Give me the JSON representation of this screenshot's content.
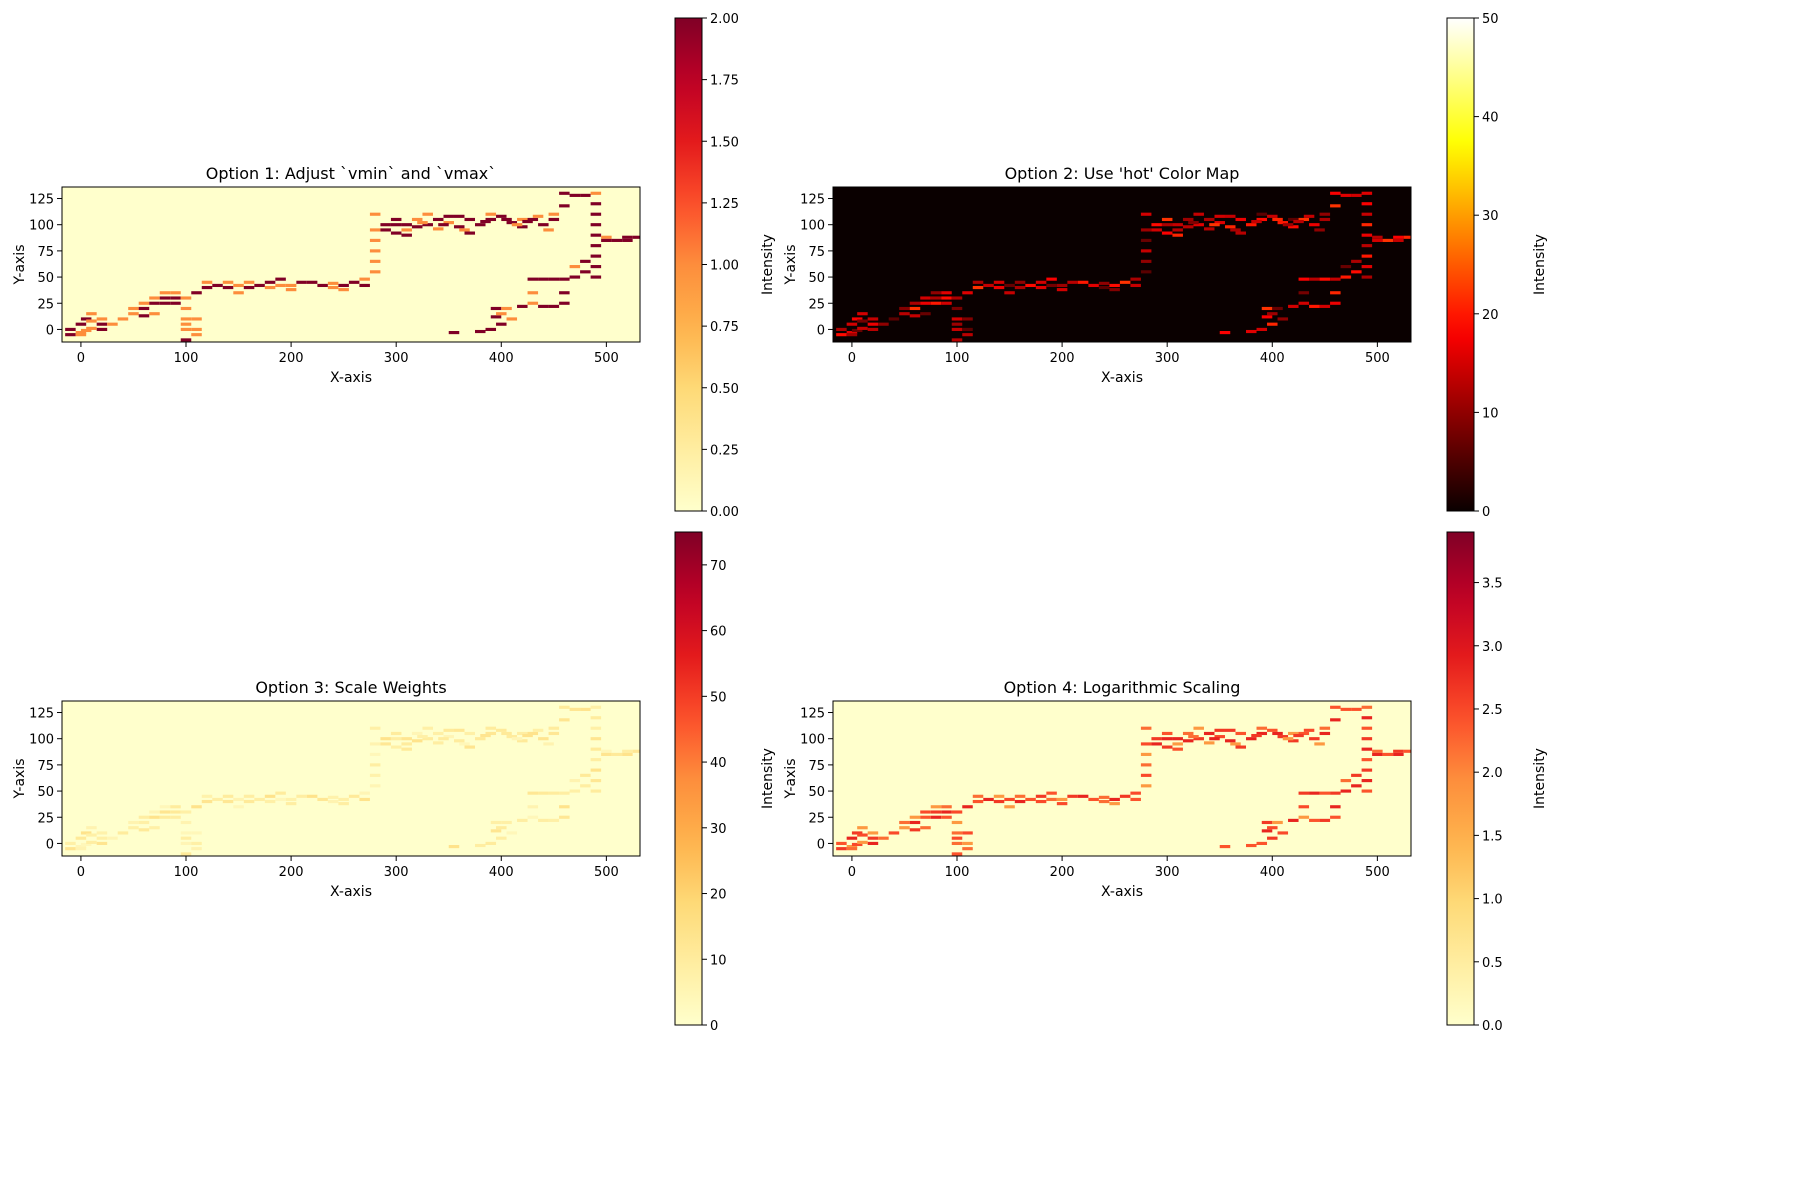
{
  "chart_data": [
    {
      "type": "heatmap",
      "title": "Option 1: Adjust `vmin` and `vmax`",
      "xlabel": "X-axis",
      "ylabel": "Y-axis",
      "xlim": [
        -18,
        532
      ],
      "ylim": [
        -12,
        136
      ],
      "xticks": [
        0,
        100,
        200,
        300,
        400,
        500
      ],
      "yticks": [
        0,
        25,
        50,
        75,
        100,
        125
      ],
      "colormap": "YlOrRd",
      "colorbar": {
        "label": "Intensity",
        "vmin": 0,
        "vmax": 2,
        "ticks": [
          "0.00",
          "0.25",
          "0.50",
          "0.75",
          "1.00",
          "1.25",
          "1.50",
          "1.75",
          "2.00"
        ]
      },
      "scale": "linear"
    },
    {
      "type": "heatmap",
      "title": "Option 2: Use 'hot' Color Map",
      "xlabel": "X-axis",
      "ylabel": "Y-axis",
      "xlim": [
        -18,
        532
      ],
      "ylim": [
        -12,
        136
      ],
      "xticks": [
        0,
        100,
        200,
        300,
        400,
        500
      ],
      "yticks": [
        0,
        25,
        50,
        75,
        100,
        125
      ],
      "colormap": "hot",
      "colorbar": {
        "label": "Intensity",
        "vmin": 0,
        "vmax": 50,
        "ticks": [
          "0",
          "10",
          "20",
          "30",
          "40",
          "50"
        ]
      },
      "scale": "linear"
    },
    {
      "type": "heatmap",
      "title": "Option 3: Scale Weights",
      "xlabel": "X-axis",
      "ylabel": "Y-axis",
      "xlim": [
        -18,
        532
      ],
      "ylim": [
        -12,
        136
      ],
      "xticks": [
        0,
        100,
        200,
        300,
        400,
        500
      ],
      "yticks": [
        0,
        25,
        50,
        75,
        100,
        125
      ],
      "colormap": "YlOrRd",
      "colorbar": {
        "label": "Intensity",
        "vmin": 0,
        "vmax": 75,
        "ticks": [
          "0",
          "10",
          "20",
          "30",
          "40",
          "50",
          "60",
          "70"
        ]
      },
      "scale": "linear"
    },
    {
      "type": "heatmap",
      "title": "Option 4: Logarithmic Scaling",
      "xlabel": "X-axis",
      "ylabel": "Y-axis",
      "xlim": [
        -18,
        532
      ],
      "ylim": [
        -12,
        136
      ],
      "xticks": [
        0,
        100,
        200,
        300,
        400,
        500
      ],
      "yticks": [
        0,
        25,
        50,
        75,
        100,
        125
      ],
      "colormap": "YlOrRd",
      "colorbar": {
        "label": "Intensity",
        "vmin": 0,
        "vmax": 3.9,
        "ticks": [
          "0.0",
          "0.5",
          "1.0",
          "1.5",
          "2.0",
          "2.5",
          "3.0",
          "3.5"
        ]
      },
      "scale": "log"
    }
  ],
  "track": {
    "cell_width": 10,
    "cell_height": 3,
    "points": [
      [
        -10,
        0,
        2
      ],
      [
        -10,
        -5,
        2
      ],
      [
        0,
        5,
        2
      ],
      [
        0,
        -3,
        1
      ],
      [
        5,
        10,
        2
      ],
      [
        10,
        8,
        1
      ],
      [
        10,
        15,
        1
      ],
      [
        20,
        5,
        2
      ],
      [
        20,
        0,
        2
      ],
      [
        20,
        10,
        1
      ],
      [
        30,
        5,
        1
      ],
      [
        40,
        10,
        1
      ],
      [
        50,
        15,
        1
      ],
      [
        50,
        20,
        1
      ],
      [
        60,
        20,
        2
      ],
      [
        60,
        25,
        1
      ],
      [
        60,
        13,
        2
      ],
      [
        70,
        30,
        1
      ],
      [
        70,
        25,
        2
      ],
      [
        70,
        15,
        1
      ],
      [
        80,
        25,
        2
      ],
      [
        80,
        35,
        1
      ],
      [
        80,
        30,
        2
      ],
      [
        90,
        30,
        2
      ],
      [
        90,
        25,
        2
      ],
      [
        90,
        35,
        1
      ],
      [
        100,
        30,
        1
      ],
      [
        100,
        20,
        1
      ],
      [
        100,
        10,
        1
      ],
      [
        100,
        5,
        1
      ],
      [
        100,
        -10,
        2
      ],
      [
        100,
        0,
        1
      ],
      [
        110,
        35,
        2
      ],
      [
        110,
        0,
        1
      ],
      [
        110,
        -5,
        1
      ],
      [
        110,
        10,
        1
      ],
      [
        120,
        40,
        2
      ],
      [
        120,
        45,
        1
      ],
      [
        130,
        42,
        2
      ],
      [
        140,
        45,
        1
      ],
      [
        140,
        40,
        2
      ],
      [
        150,
        42,
        1
      ],
      [
        150,
        35,
        1
      ],
      [
        160,
        45,
        1
      ],
      [
        160,
        40,
        2
      ],
      [
        170,
        42,
        2
      ],
      [
        180,
        45,
        2
      ],
      [
        180,
        40,
        1
      ],
      [
        190,
        48,
        2
      ],
      [
        190,
        42,
        1
      ],
      [
        200,
        38,
        1
      ],
      [
        200,
        42,
        1
      ],
      [
        210,
        45,
        2
      ],
      [
        220,
        45,
        2
      ],
      [
        230,
        42,
        2
      ],
      [
        240,
        40,
        1
      ],
      [
        250,
        42,
        2
      ],
      [
        250,
        38,
        1
      ],
      [
        260,
        45,
        2
      ],
      [
        270,
        48,
        1
      ],
      [
        270,
        42,
        2
      ],
      [
        280,
        110,
        1
      ],
      [
        280,
        95,
        1
      ],
      [
        280,
        85,
        1
      ],
      [
        280,
        75,
        1
      ],
      [
        280,
        65,
        1
      ],
      [
        280,
        55,
        1
      ],
      [
        290,
        100,
        2
      ],
      [
        290,
        95,
        2
      ],
      [
        300,
        105,
        2
      ],
      [
        300,
        92,
        2
      ],
      [
        310,
        100,
        2
      ],
      [
        310,
        90,
        2
      ],
      [
        320,
        105,
        1
      ],
      [
        320,
        98,
        2
      ],
      [
        330,
        110,
        1
      ],
      [
        330,
        100,
        2
      ],
      [
        340,
        105,
        2
      ],
      [
        340,
        96,
        1
      ],
      [
        350,
        108,
        2
      ],
      [
        350,
        102,
        1
      ],
      [
        355,
        -3,
        2
      ],
      [
        360,
        108,
        2
      ],
      [
        360,
        98,
        2
      ],
      [
        370,
        105,
        2
      ],
      [
        370,
        92,
        2
      ],
      [
        380,
        100,
        2
      ],
      [
        380,
        -2,
        2
      ],
      [
        390,
        110,
        1
      ],
      [
        390,
        105,
        2
      ],
      [
        390,
        0,
        2
      ],
      [
        395,
        20,
        2
      ],
      [
        395,
        12,
        2
      ],
      [
        400,
        108,
        2
      ],
      [
        400,
        5,
        2
      ],
      [
        400,
        15,
        1
      ],
      [
        405,
        20,
        1
      ],
      [
        410,
        102,
        2
      ],
      [
        410,
        10,
        1
      ],
      [
        420,
        105,
        1
      ],
      [
        420,
        98,
        2
      ],
      [
        420,
        22,
        2
      ],
      [
        430,
        105,
        2
      ],
      [
        430,
        48,
        2
      ],
      [
        430,
        35,
        1
      ],
      [
        430,
        25,
        1
      ],
      [
        440,
        100,
        2
      ],
      [
        440,
        48,
        2
      ],
      [
        440,
        22,
        2
      ],
      [
        450,
        110,
        1
      ],
      [
        450,
        105,
        2
      ],
      [
        450,
        48,
        2
      ],
      [
        450,
        22,
        2
      ],
      [
        460,
        118,
        2
      ],
      [
        460,
        130,
        2
      ],
      [
        460,
        48,
        2
      ],
      [
        460,
        35,
        2
      ],
      [
        460,
        25,
        2
      ],
      [
        470,
        60,
        1
      ],
      [
        470,
        50,
        2
      ],
      [
        470,
        128,
        2
      ],
      [
        480,
        65,
        2
      ],
      [
        480,
        55,
        2
      ],
      [
        480,
        128,
        2
      ],
      [
        490,
        130,
        1
      ],
      [
        490,
        120,
        2
      ],
      [
        490,
        110,
        2
      ],
      [
        490,
        100,
        2
      ],
      [
        490,
        90,
        2
      ],
      [
        490,
        80,
        2
      ],
      [
        490,
        70,
        2
      ],
      [
        490,
        60,
        2
      ],
      [
        490,
        50,
        2
      ],
      [
        500,
        88,
        1
      ],
      [
        500,
        85,
        2
      ],
      [
        510,
        85,
        2
      ],
      [
        520,
        88,
        2
      ],
      [
        520,
        85,
        2
      ],
      [
        530,
        88,
        2
      ],
      [
        0,
        -5,
        1
      ],
      [
        5,
        -1,
        1
      ],
      [
        10,
        1,
        1
      ],
      [
        240,
        44,
        1
      ],
      [
        300,
        100,
        2
      ],
      [
        310,
        95,
        1
      ],
      [
        325,
        102,
        1
      ],
      [
        345,
        100,
        2
      ],
      [
        365,
        95,
        1
      ],
      [
        385,
        103,
        2
      ],
      [
        405,
        105,
        2
      ],
      [
        415,
        100,
        1
      ],
      [
        425,
        103,
        2
      ],
      [
        435,
        108,
        1
      ],
      [
        445,
        95,
        1
      ]
    ]
  }
}
